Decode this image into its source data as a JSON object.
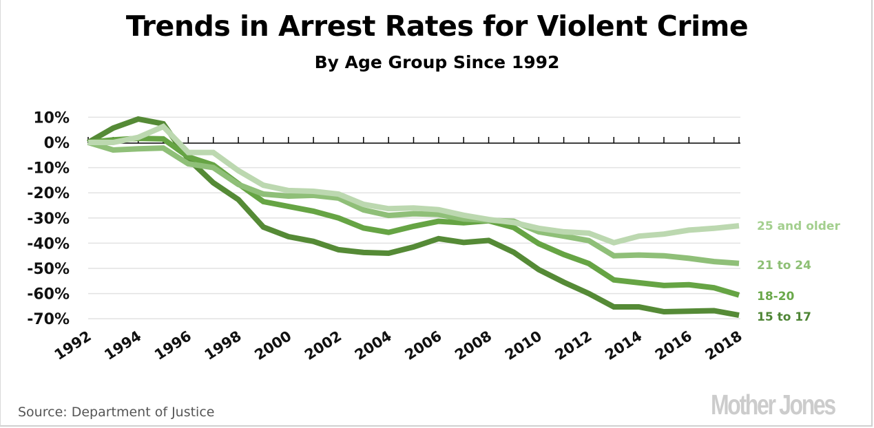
{
  "title": "Trends in Arrest Rates for Violent Crime",
  "subtitle": "By Age Group Since 1992",
  "source": "Source: Department of Justice",
  "logo": "Mother Jones",
  "chart_data": {
    "type": "line",
    "title": "Trends in Arrest Rates for Violent Crime",
    "subtitle": "By Age Group Since 1992",
    "xlabel": "",
    "ylabel": "",
    "x": [
      1992,
      1993,
      1994,
      1995,
      1996,
      1997,
      1998,
      1999,
      2000,
      2001,
      2002,
      2003,
      2004,
      2005,
      2006,
      2007,
      2008,
      2009,
      2010,
      2011,
      2012,
      2013,
      2014,
      2015,
      2016,
      2017,
      2018
    ],
    "xticks": [
      "1992",
      "1994",
      "1996",
      "1998",
      "2000",
      "2002",
      "2004",
      "2006",
      "2008",
      "2010",
      "2012",
      "2014",
      "2016",
      "2018"
    ],
    "yticks": [
      10,
      0,
      -10,
      -20,
      -30,
      -40,
      -50,
      -60,
      -70
    ],
    "ytick_labels": [
      "10%",
      "0%",
      "-10%",
      "-20%",
      "-30%",
      "-40%",
      "-50%",
      "-60%",
      "-70%"
    ],
    "ylim": [
      -70,
      10
    ],
    "grid": true,
    "legend": "direct labels at right end of lines",
    "series": [
      {
        "name": "25 and older",
        "color": "#bcd8b0",
        "label_color": "#a3cf8e",
        "values": [
          0,
          0,
          2,
          6.3,
          -4,
          -4,
          -11.2,
          -17,
          -19.1,
          -19.4,
          -20.5,
          -24.6,
          -26.3,
          -26,
          -26.7,
          -28.9,
          -30.6,
          -31.8,
          -34.1,
          -35.5,
          -36,
          -39.8,
          -37.2,
          -36.4,
          -34.8,
          -34.1,
          -33.1
        ]
      },
      {
        "name": "21 to 24",
        "color": "#8fbf78",
        "label_color": "#8dbf74",
        "values": [
          0,
          -3,
          -2.5,
          -2.2,
          -8.5,
          -10,
          -16.7,
          -20.5,
          -21.3,
          -21,
          -22.1,
          -26.8,
          -29,
          -28.3,
          -28.6,
          -30.4,
          -30.9,
          -31.3,
          -35.5,
          -37.2,
          -39,
          -45,
          -44.7,
          -45,
          -46,
          -47.3,
          -48
        ]
      },
      {
        "name": "18-20",
        "color": "#66a444",
        "label_color": "#6aa84a",
        "values": [
          0,
          1,
          1.6,
          1.4,
          -5.7,
          -9,
          -16.4,
          -23.5,
          -25.4,
          -27.3,
          -30,
          -34,
          -35.7,
          -33.3,
          -31.3,
          -31.9,
          -31.1,
          -33.8,
          -40.2,
          -44.5,
          -48.1,
          -54.6,
          -55.7,
          -56.8,
          -56.5,
          -57.7,
          -60.6
        ]
      },
      {
        "name": "15 to 17",
        "color": "#558a36",
        "label_color": "#4e8535",
        "values": [
          0,
          5.7,
          9.3,
          7.4,
          -6.6,
          -16,
          -22.7,
          -33.6,
          -37.4,
          -39.3,
          -42.6,
          -43.7,
          -44,
          -41.5,
          -38.2,
          -39.7,
          -38.9,
          -43.6,
          -50.5,
          -55.5,
          -60,
          -65.3,
          -65.3,
          -67.2,
          -67,
          -66.8,
          -68.6
        ]
      }
    ]
  }
}
